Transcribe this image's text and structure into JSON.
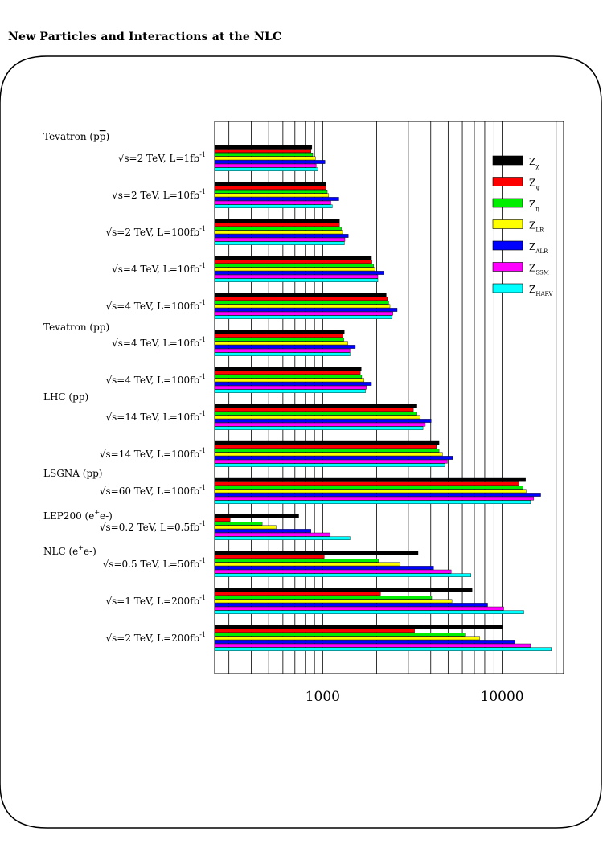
{
  "page_title": "New Particles and Interactions at the NLC",
  "chart_data": {
    "type": "bar",
    "orientation": "horizontal",
    "x_scale": "log",
    "xlim": [
      250,
      22000
    ],
    "x_tick_labels": [
      "1000",
      "10000"
    ],
    "grid": true,
    "legend_position": "top-right",
    "series": [
      {
        "name": "Z",
        "sub": "χ",
        "color": "#000000"
      },
      {
        "name": "Z",
        "sub": "ψ",
        "color": "#ff0000"
      },
      {
        "name": "Z",
        "sub": "η",
        "color": "#00ee00"
      },
      {
        "name": "Z",
        "sub": "LR",
        "color": "#ffff00"
      },
      {
        "name": "Z",
        "sub": "ALR",
        "color": "#0000ff"
      },
      {
        "name": "Z",
        "sub": "SSM",
        "color": "#ff00ff"
      },
      {
        "name": "Z",
        "sub": "HARV",
        "color": "#00ffff"
      }
    ],
    "headers": [
      {
        "label": "Tevatron (p",
        "over": "p",
        "end": ")",
        "before_group": 0
      },
      {
        "label": "Tevatron (pp)",
        "before_group": 5
      },
      {
        "label": "LHC (pp)",
        "before_group": 7
      },
      {
        "label": "LSGNA (pp)",
        "before_group": 9
      },
      {
        "label": "LEP200 (e",
        "sup": "+",
        "end": "e-)",
        "before_group": 10
      },
      {
        "label": "NLC  (e",
        "sup": "+",
        "end": "e-)",
        "before_group": 11
      }
    ],
    "groups": [
      {
        "label": "√s=2 TeV, L=1fb",
        "sup": "-1",
        "values": [
          870,
          860,
          880,
          910,
          1030,
          920,
          940
        ]
      },
      {
        "label": "√s=2 TeV, L=10fb",
        "sup": "-1",
        "values": [
          1040,
          1040,
          1060,
          1080,
          1230,
          1110,
          1130
        ]
      },
      {
        "label": "√s=2 TeV, L=100fb",
        "sup": "-1",
        "values": [
          1240,
          1240,
          1270,
          1290,
          1390,
          1330,
          1320
        ]
      },
      {
        "label": "√s=4 TeV, L=10fb",
        "sup": "-1",
        "values": [
          1870,
          1880,
          1920,
          1960,
          2200,
          2030,
          2030
        ]
      },
      {
        "label": "√s=4 TeV, L=100fb",
        "sup": "-1",
        "values": [
          2260,
          2290,
          2330,
          2370,
          2600,
          2460,
          2440
        ]
      },
      {
        "label": "√s=4 TeV, L=10fb",
        "sup": "-1",
        "values": [
          1320,
          1300,
          1310,
          1380,
          1520,
          1420,
          1420
        ]
      },
      {
        "label": "√s=4 TeV, L=100fb",
        "sup": "-1",
        "values": [
          1640,
          1620,
          1650,
          1700,
          1870,
          1750,
          1730
        ]
      },
      {
        "label": "√s=14 TeV, L=10fb",
        "sup": "-1",
        "values": [
          3350,
          3200,
          3350,
          3500,
          4020,
          3730,
          3620
        ]
      },
      {
        "label": "√s=14 TeV, L=100fb",
        "sup": "-1",
        "values": [
          4450,
          4300,
          4450,
          4650,
          5300,
          4950,
          4800
        ]
      },
      {
        "label": "√s=60 TeV, L=100fb",
        "sup": "-1",
        "values": [
          13500,
          12400,
          13100,
          13600,
          16400,
          15000,
          14400
        ]
      },
      {
        "label": "√s=0.2 TeV, L=0.5fb",
        "sup": "-1",
        "values": [
          735,
          305,
          460,
          550,
          860,
          1100,
          1420
        ]
      },
      {
        "label": "√s=0.5 TeV, L=50fb",
        "sup": "-1",
        "values": [
          3400,
          1020,
          2050,
          2700,
          4150,
          5200,
          6700
        ]
      },
      {
        "label": "√s=1 TeV, L=200fb",
        "sup": "-1",
        "values": [
          6800,
          2100,
          4050,
          5250,
          8300,
          10200,
          13200
        ]
      },
      {
        "label": "√s=2 TeV, L=200fb",
        "sup": "-1",
        "values": [
          10000,
          3250,
          6200,
          7500,
          11800,
          14400,
          18800
        ]
      }
    ]
  }
}
